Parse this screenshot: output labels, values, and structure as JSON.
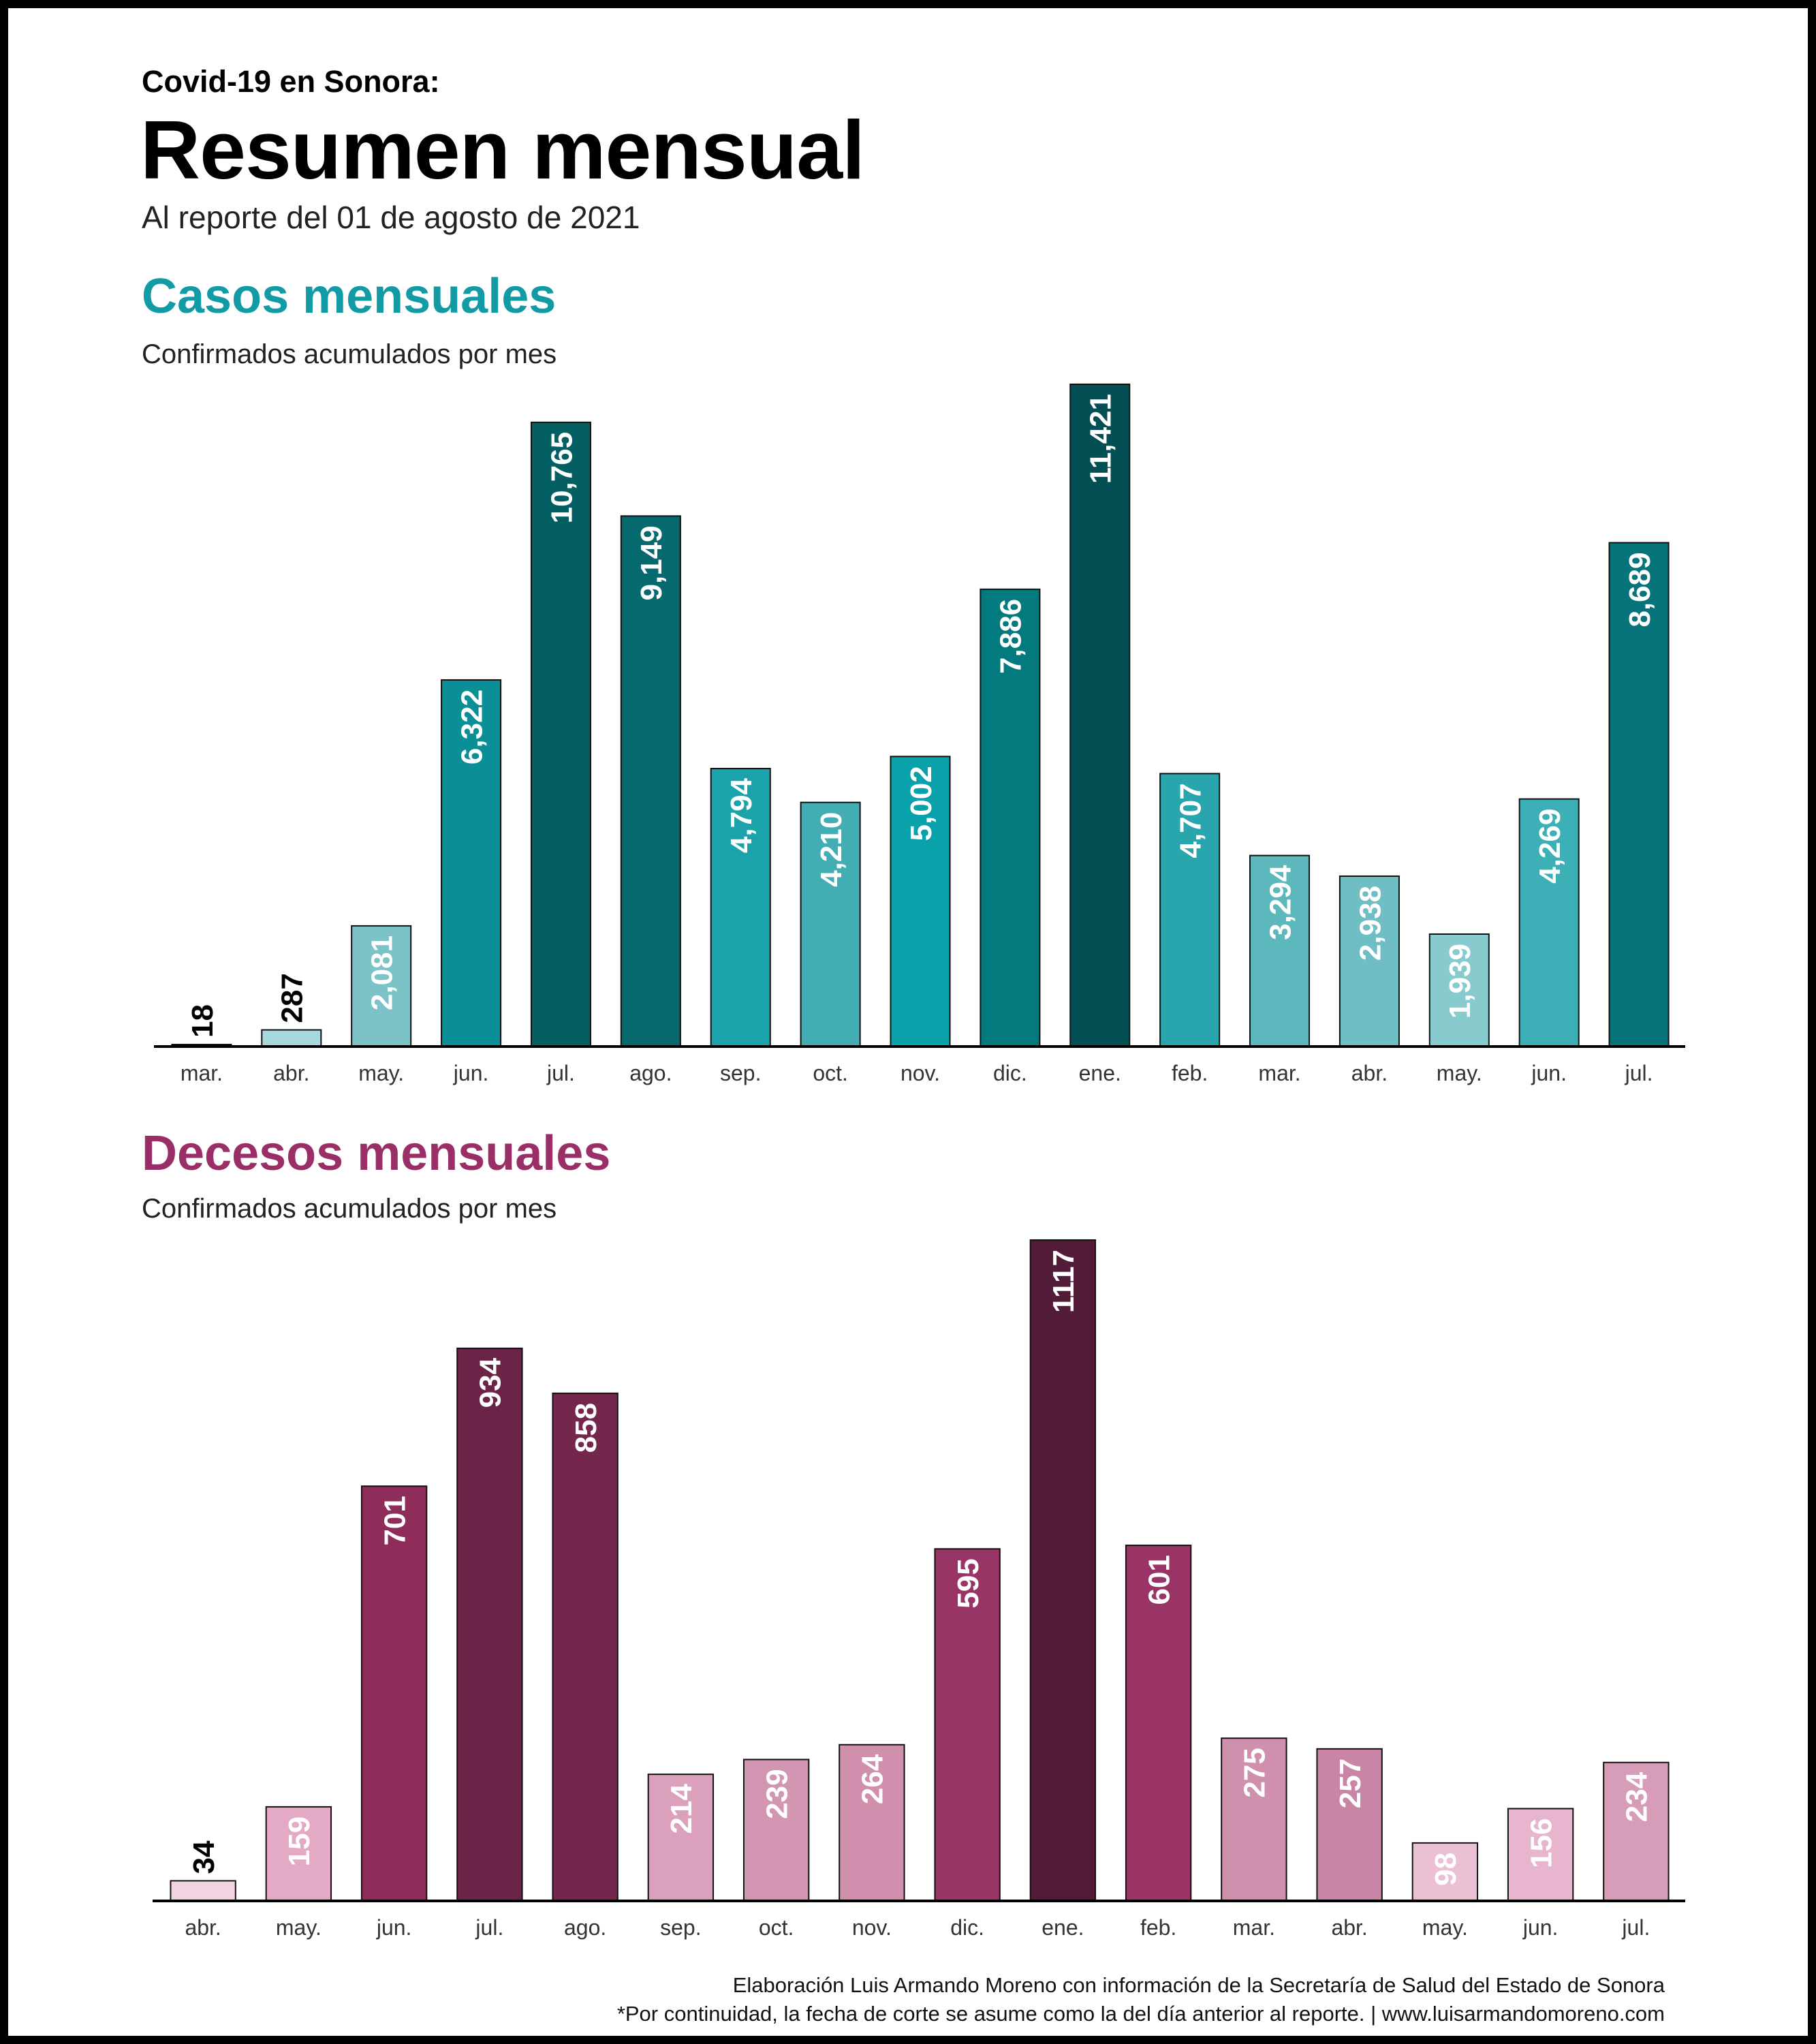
{
  "header": {
    "kicker": "Covid-19 en Sonora:",
    "title": "Resumen mensual",
    "subtitle": "Al reporte del 01 de agosto de 2021"
  },
  "colors": {
    "cases_title": "#129ba4",
    "deaths_title": "#9a2f68",
    "axis": "#000000",
    "bar_stroke": "#111111"
  },
  "chart_data": [
    {
      "type": "bar",
      "title": "Casos mensuales",
      "subtitle": "Confirmados acumulados por mes",
      "categories": [
        "mar.",
        "abr.",
        "may.",
        "jun.",
        "jul.",
        "ago.",
        "sep.",
        "oct.",
        "nov.",
        "dic.",
        "ene.",
        "feb.",
        "mar.",
        "abr.",
        "may.",
        "jun.",
        "jul."
      ],
      "values": [
        18,
        287,
        2081,
        6322,
        10765,
        9149,
        4794,
        4210,
        5002,
        7886,
        11421,
        4707,
        3294,
        2938,
        1939,
        4269,
        8689
      ],
      "value_labels": [
        "18",
        "287",
        "2,081",
        "6,322",
        "10,765",
        "9,149",
        "4,794",
        "4,210",
        "5,002",
        "7,886",
        "11,421",
        "4,707",
        "3,294",
        "2,938",
        "1,939",
        "4,269",
        "8,689"
      ],
      "bar_colors": [
        "#c8e6e8",
        "#a6d8dc",
        "#7cc3c7",
        "#0b8f96",
        "#045f63",
        "#06696e",
        "#1aa3ab",
        "#42aeb4",
        "#0aa2aa",
        "#037a7e",
        "#034f54",
        "#29a6ad",
        "#5db8bd",
        "#6ebec3",
        "#88cbcf",
        "#3cb0b6",
        "#07737a"
      ],
      "ylim": [
        0,
        11421
      ],
      "grid": false
    },
    {
      "type": "bar",
      "title": "Decesos mensuales",
      "subtitle": "Confirmados acumulados por mes",
      "categories": [
        "abr.",
        "may.",
        "jun.",
        "jul.",
        "ago.",
        "sep.",
        "oct.",
        "nov.",
        "dic.",
        "ene.",
        "feb.",
        "mar.",
        "abr.",
        "may.",
        "jun.",
        "jul."
      ],
      "values": [
        34,
        159,
        701,
        934,
        858,
        214,
        239,
        264,
        595,
        1117,
        601,
        275,
        257,
        98,
        156,
        234
      ],
      "value_labels": [
        "34",
        "159",
        "701",
        "934",
        "858",
        "214",
        "239",
        "264",
        "595",
        "1117",
        "601",
        "275",
        "257",
        "98",
        "156",
        "234"
      ],
      "bar_colors": [
        "#f2d3e2",
        "#e3a9c5",
        "#8e2c5a",
        "#6b2347",
        "#74264d",
        "#dba1bc",
        "#d296b2",
        "#cf8fad",
        "#993466",
        "#521c38",
        "#9a3366",
        "#ce90ad",
        "#c985a6",
        "#ebc0d4",
        "#e7b5cd",
        "#d79cb8"
      ],
      "ylim": [
        0,
        1117
      ],
      "grid": false
    }
  ],
  "footer": {
    "credit_line1": "Elaboración Luis Armando Moreno con información de la Secretaría de Salud del Estado de Sonora",
    "credit_line2": "*Por continuidad, la fecha de corte se asume como la del día anterior al reporte. | www.luisarmandomoreno.com"
  }
}
